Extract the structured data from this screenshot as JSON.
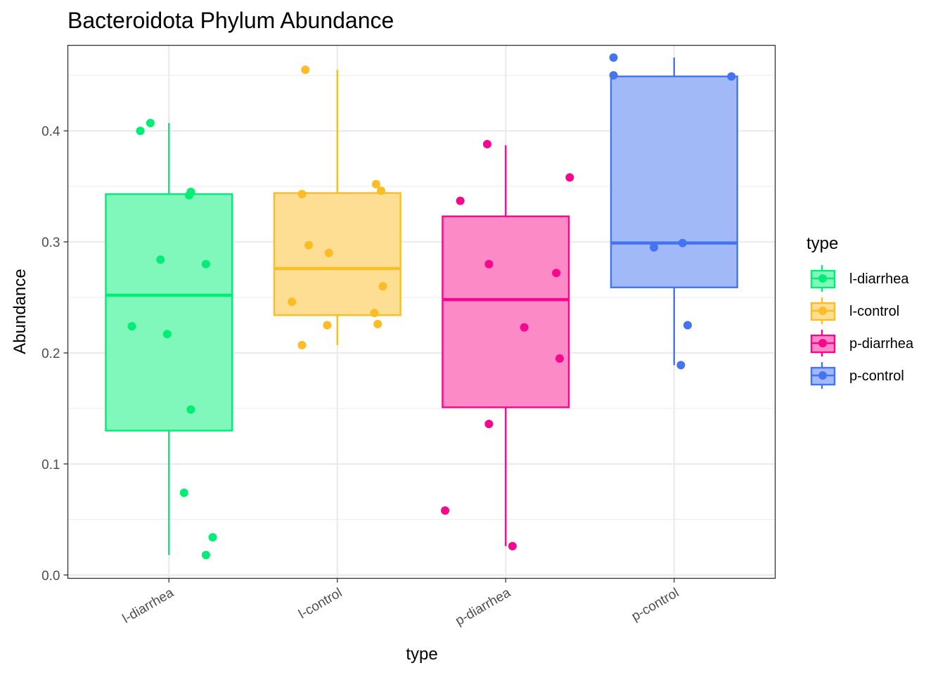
{
  "chart_data": {
    "type": "boxplot",
    "title": "Bacteroidota Phylum Abundance",
    "xlabel": "type",
    "ylabel": "Abundance",
    "ylim": [
      -0.003,
      0.477
    ],
    "yticks": [
      0.0,
      0.1,
      0.2,
      0.3,
      0.4
    ],
    "ytick_labels": [
      "0.0",
      "0.1",
      "0.2",
      "0.3",
      "0.4"
    ],
    "grid": true,
    "legend": {
      "title": "type",
      "position": "right"
    },
    "categories": [
      "l-diarrhea",
      "l-control",
      "p-diarrhea",
      "p-control"
    ],
    "series": [
      {
        "name": "l-diarrhea",
        "color": "#00ee76",
        "fill": "#80f7bb",
        "box": {
          "min": 0.018,
          "q1": 0.13,
          "median": 0.252,
          "q3": 0.343,
          "max": 0.407
        },
        "points": [
          {
            "dx": -0.17,
            "y": 0.4
          },
          {
            "dx": -0.11,
            "y": 0.407
          },
          {
            "dx": 0.13,
            "y": 0.345
          },
          {
            "dx": 0.12,
            "y": 0.342
          },
          {
            "dx": -0.05,
            "y": 0.284
          },
          {
            "dx": 0.22,
            "y": 0.28
          },
          {
            "dx": -0.22,
            "y": 0.224
          },
          {
            "dx": -0.01,
            "y": 0.217
          },
          {
            "dx": 0.13,
            "y": 0.149
          },
          {
            "dx": 0.09,
            "y": 0.074
          },
          {
            "dx": 0.26,
            "y": 0.034
          },
          {
            "dx": 0.22,
            "y": 0.018
          }
        ]
      },
      {
        "name": "l-control",
        "color": "#fbbc25",
        "fill": "#fdde92",
        "box": {
          "min": 0.207,
          "q1": 0.234,
          "median": 0.276,
          "q3": 0.344,
          "max": 0.455
        },
        "points": [
          {
            "dx": -0.19,
            "y": 0.455
          },
          {
            "dx": 0.23,
            "y": 0.352
          },
          {
            "dx": 0.26,
            "y": 0.346
          },
          {
            "dx": -0.21,
            "y": 0.343
          },
          {
            "dx": -0.17,
            "y": 0.297
          },
          {
            "dx": -0.05,
            "y": 0.29
          },
          {
            "dx": 0.27,
            "y": 0.26
          },
          {
            "dx": -0.27,
            "y": 0.246
          },
          {
            "dx": 0.22,
            "y": 0.236
          },
          {
            "dx": 0.24,
            "y": 0.226
          },
          {
            "dx": -0.06,
            "y": 0.225
          },
          {
            "dx": -0.21,
            "y": 0.207
          }
        ]
      },
      {
        "name": "p-diarrhea",
        "color": "#f7078e",
        "fill": "#fb8ac6",
        "box": {
          "min": 0.026,
          "q1": 0.151,
          "median": 0.248,
          "q3": 0.323,
          "max": 0.387
        },
        "points": [
          {
            "dx": -0.11,
            "y": 0.388
          },
          {
            "dx": 0.38,
            "y": 0.358
          },
          {
            "dx": -0.27,
            "y": 0.337
          },
          {
            "dx": -0.1,
            "y": 0.28
          },
          {
            "dx": 0.3,
            "y": 0.272
          },
          {
            "dx": 0.11,
            "y": 0.223
          },
          {
            "dx": 0.32,
            "y": 0.195
          },
          {
            "dx": -0.1,
            "y": 0.136
          },
          {
            "dx": -0.36,
            "y": 0.058
          },
          {
            "dx": 0.04,
            "y": 0.026
          }
        ]
      },
      {
        "name": "p-control",
        "color": "#4574f2",
        "fill": "#a2b9f8",
        "box": {
          "min": 0.189,
          "q1": 0.259,
          "median": 0.299,
          "q3": 0.449,
          "max": 0.466
        },
        "points": [
          {
            "dx": -0.36,
            "y": 0.466
          },
          {
            "dx": -0.36,
            "y": 0.45
          },
          {
            "dx": 0.34,
            "y": 0.449
          },
          {
            "dx": 0.05,
            "y": 0.299
          },
          {
            "dx": -0.12,
            "y": 0.295
          },
          {
            "dx": 0.08,
            "y": 0.225
          },
          {
            "dx": 0.04,
            "y": 0.189
          }
        ]
      }
    ]
  }
}
